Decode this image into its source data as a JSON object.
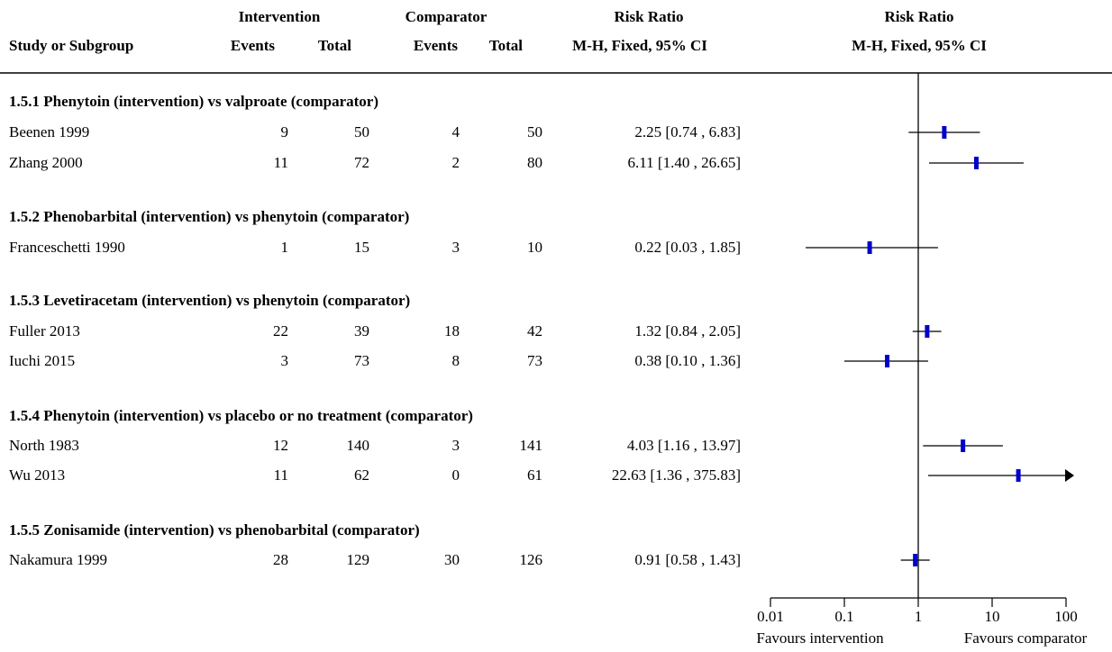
{
  "header": {
    "intervention_label": "Intervention",
    "comparator_label": "Comparator",
    "rr_label_table": "Risk Ratio",
    "rr_label_plot": "Risk Ratio",
    "study_col": "Study or Subgroup",
    "events_col": "Events",
    "total_col": "Total",
    "method_table": "M-H, Fixed, 95% CI",
    "method_plot": "M-H, Fixed, 95% CI"
  },
  "chart_data": {
    "type": "forest",
    "x_scale": "log",
    "xlim": [
      0.01,
      100
    ],
    "reference_line": 1,
    "ticks": [
      {
        "value": 0.01,
        "label": "0.01"
      },
      {
        "value": 0.1,
        "label": "0.1"
      },
      {
        "value": 1,
        "label": "1"
      },
      {
        "value": 10,
        "label": "10"
      },
      {
        "value": 100,
        "label": "100"
      }
    ],
    "favours_left": "Favours intervention",
    "favours_right": "Favours comparator",
    "marker_color": "#0000cc",
    "subgroups": [
      {
        "title": "1.5.1 Phenytoin (intervention) vs valproate (comparator)",
        "studies": [
          {
            "name": "Beenen 1999",
            "int_events": "9",
            "int_total": "50",
            "comp_events": "4",
            "comp_total": "50",
            "ci_text": "2.25 [0.74 , 6.83]",
            "rr": 2.25,
            "lo": 0.74,
            "hi": 6.83
          },
          {
            "name": "Zhang 2000",
            "int_events": "11",
            "int_total": "72",
            "comp_events": "2",
            "comp_total": "80",
            "ci_text": "6.11 [1.40 , 26.65]",
            "rr": 6.11,
            "lo": 1.4,
            "hi": 26.65
          }
        ]
      },
      {
        "title": "1.5.2 Phenobarbital (intervention) vs phenytoin (comparator)",
        "studies": [
          {
            "name": "Franceschetti 1990",
            "int_events": "1",
            "int_total": "15",
            "comp_events": "3",
            "comp_total": "10",
            "ci_text": "0.22 [0.03 , 1.85]",
            "rr": 0.22,
            "lo": 0.03,
            "hi": 1.85
          }
        ]
      },
      {
        "title": "1.5.3 Levetiracetam (intervention) vs phenytoin (comparator)",
        "studies": [
          {
            "name": "Fuller 2013",
            "int_events": "22",
            "int_total": "39",
            "comp_events": "18",
            "comp_total": "42",
            "ci_text": "1.32 [0.84 , 2.05]",
            "rr": 1.32,
            "lo": 0.84,
            "hi": 2.05
          },
          {
            "name": "Iuchi 2015",
            "int_events": "3",
            "int_total": "73",
            "comp_events": "8",
            "comp_total": "73",
            "ci_text": "0.38 [0.10 , 1.36]",
            "rr": 0.38,
            "lo": 0.1,
            "hi": 1.36
          }
        ]
      },
      {
        "title": "1.5.4 Phenytoin (intervention) vs placebo or no treatment (comparator)",
        "studies": [
          {
            "name": "North 1983",
            "int_events": "12",
            "int_total": "140",
            "comp_events": "3",
            "comp_total": "141",
            "ci_text": "4.03 [1.16 , 13.97]",
            "rr": 4.03,
            "lo": 1.16,
            "hi": 13.97
          },
          {
            "name": "Wu 2013",
            "int_events": "11",
            "int_total": "62",
            "comp_events": "0",
            "comp_total": "61",
            "ci_text": "22.63 [1.36 , 375.83]",
            "rr": 22.63,
            "lo": 1.36,
            "hi": 375.83
          }
        ]
      },
      {
        "title": "1.5.5 Zonisamide (intervention) vs phenobarbital (comparator)",
        "studies": [
          {
            "name": "Nakamura 1999",
            "int_events": "28",
            "int_total": "129",
            "comp_events": "30",
            "comp_total": "126",
            "ci_text": "0.91 [0.58 , 1.43]",
            "rr": 0.91,
            "lo": 0.58,
            "hi": 1.43
          }
        ]
      }
    ]
  }
}
